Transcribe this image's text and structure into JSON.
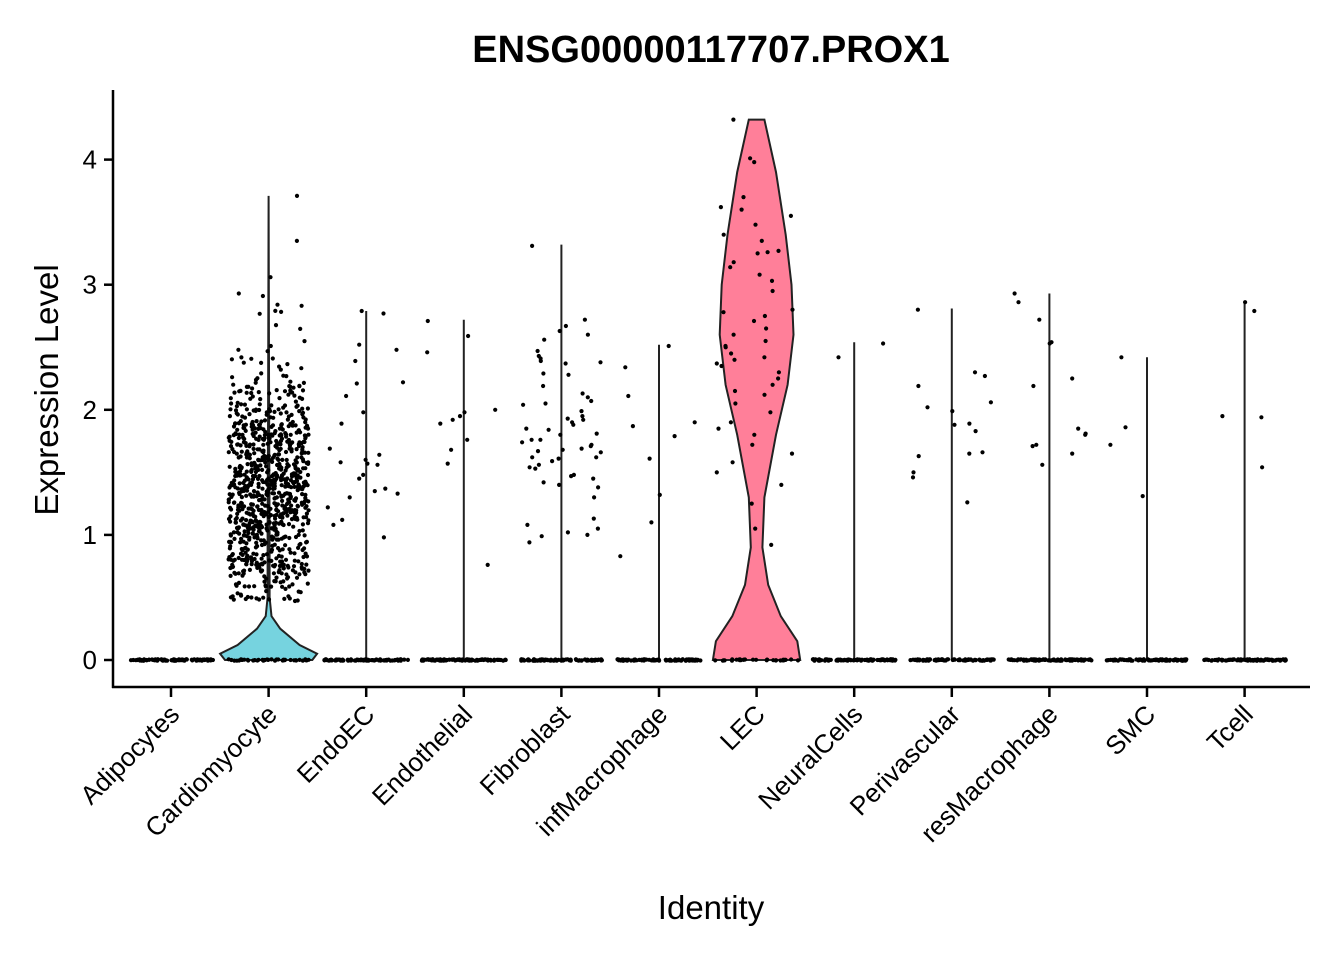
{
  "chart_data": {
    "type": "violin",
    "title": "ENSG00000117707.PROX1",
    "xlabel": "Identity",
    "ylabel": "Expression Level",
    "ylim": [
      -0.2,
      4.55
    ],
    "yticks": [
      0,
      1,
      2,
      3,
      4
    ],
    "categories": [
      "Adipocytes",
      "Cardiomyocyte",
      "EndoEC",
      "Endothelial",
      "Fibroblast",
      "infMacrophage",
      "LEC",
      "NeuralCells",
      "Perivascular",
      "resMacrophage",
      "SMC",
      "Tcell"
    ],
    "fill_colors": [
      "#F8766D",
      "#76D3DF",
      "#DE8C00",
      "#B79F00",
      "#7CAE00",
      "#00BA38",
      "#FF7F99",
      "#00C08B",
      "#00BFC4",
      "#619CFF",
      "#C77CFF",
      "#F564E3"
    ],
    "max_expression": [
      0,
      3.71,
      2.79,
      2.72,
      3.32,
      2.52,
      4.32,
      2.54,
      2.81,
      2.93,
      2.42,
      2.86
    ],
    "violin_profiles": [
      null,
      [
        [
          0,
          0.45
        ],
        [
          0.05,
          0.5
        ],
        [
          0.12,
          0.32
        ],
        [
          0.25,
          0.12
        ],
        [
          0.35,
          0.03
        ],
        [
          0.5,
          0.01
        ],
        [
          1.0,
          0.01
        ],
        [
          2.0,
          0.005
        ],
        [
          3.71,
          0.0
        ]
      ],
      null,
      null,
      null,
      null,
      [
        [
          0,
          0.45
        ],
        [
          0.15,
          0.42
        ],
        [
          0.35,
          0.25
        ],
        [
          0.6,
          0.12
        ],
        [
          0.9,
          0.06
        ],
        [
          1.3,
          0.08
        ],
        [
          1.8,
          0.2
        ],
        [
          2.2,
          0.32
        ],
        [
          2.6,
          0.38
        ],
        [
          3.0,
          0.36
        ],
        [
          3.4,
          0.3
        ],
        [
          3.9,
          0.2
        ],
        [
          4.32,
          0.08
        ]
      ],
      null,
      null,
      null,
      null,
      null
    ],
    "expressing_points": [
      [],
      [],
      [
        2.77,
        2.79,
        2.21,
        1.98,
        1.12,
        1.48,
        1.3,
        1.33,
        1.08,
        1.22,
        0.98,
        2.22,
        2.11,
        1.6,
        1.57,
        1.45,
        1.37,
        1.69,
        1.64,
        1.35,
        2.39,
        1.58,
        1.89,
        2.52,
        2.48,
        1.56
      ],
      [
        1.89,
        2.0,
        1.95,
        2.71,
        1.92,
        1.68,
        0.76,
        1.98,
        2.46,
        1.57,
        1.76,
        2.59
      ],
      [
        2.39,
        2.47,
        2.05,
        1.76,
        1.67,
        1.62,
        2.63,
        2.72,
        2.67,
        2.1,
        2.07,
        1.92,
        1.81,
        1.13,
        0.99,
        1.54,
        1.48,
        1.72,
        1.56,
        1.05,
        1.45,
        2.29,
        1.9,
        1.76,
        1.61,
        1.38,
        1.0,
        1.93,
        1.85,
        1.71,
        2.19,
        0.94,
        1.02,
        1.08,
        2.6,
        2.56,
        2.04,
        1.8,
        1.69,
        1.42,
        1.3,
        1.99,
        2.38,
        1.66,
        1.59,
        2.43,
        2.28,
        2.13,
        1.84,
        1.74,
        1.53,
        1.47,
        2.41,
        2.37,
        1.95,
        1.88,
        1.68,
        1.62,
        1.4,
        3.31
      ],
      [
        2.51,
        2.11,
        1.79,
        1.9,
        2.34,
        1.87,
        1.32,
        1.61,
        1.1,
        0.83
      ],
      [],
      [
        2.42,
        2.53
      ],
      [
        2.8,
        2.06,
        1.89,
        1.65,
        1.99,
        2.19,
        1.46,
        1.66,
        1.26,
        2.02,
        2.3,
        1.83,
        2.27,
        1.5,
        1.88,
        1.63
      ],
      [
        2.19,
        2.25,
        1.8,
        2.54,
        2.93,
        1.56,
        1.85,
        1.72,
        1.71,
        2.72,
        2.86,
        2.53,
        1.65,
        1.81
      ],
      [
        1.72,
        2.42,
        1.86,
        1.31
      ],
      [
        1.54,
        1.94,
        1.95,
        2.86,
        2.79
      ]
    ],
    "lec_points": [
      4.32,
      3.98,
      4.01,
      3.7,
      3.62,
      3.55,
      3.48,
      3.4,
      3.35,
      3.27,
      3.25,
      3.14,
      3.08,
      3.03,
      2.95,
      2.8,
      2.75,
      2.71,
      2.65,
      2.6,
      2.55,
      2.5,
      2.45,
      2.42,
      2.4,
      2.35,
      2.3,
      2.25,
      2.2,
      2.12,
      2.05,
      1.98,
      1.9,
      1.85,
      1.8,
      1.72,
      1.65,
      1.58,
      1.5,
      1.4,
      1.25,
      1.05,
      0.92,
      2.37,
      2.78,
      3.18,
      3.6,
      3.26,
      2.51,
      2.15
    ],
    "cardio_point_count": 900,
    "zero_band_points_per_group": 90
  }
}
